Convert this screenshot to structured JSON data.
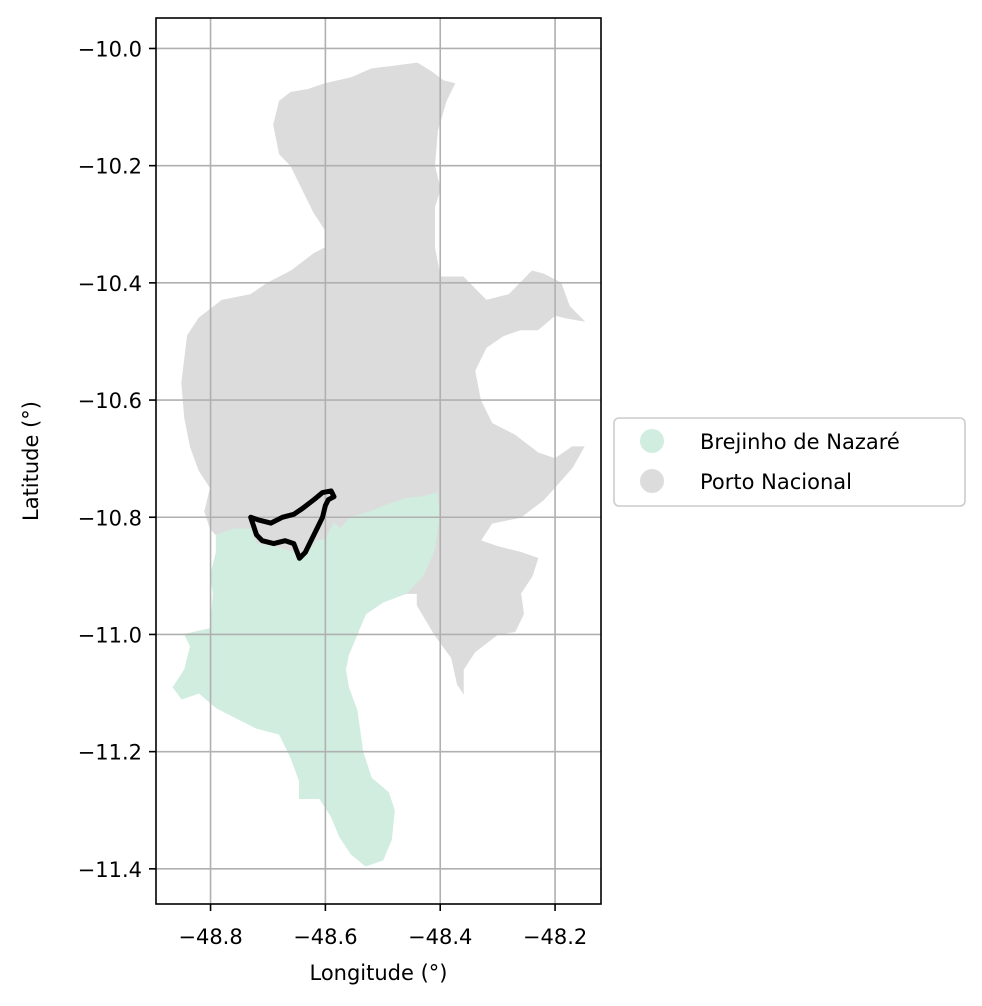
{
  "chart_data": {
    "type": "map",
    "xlabel": "Longitude (°)",
    "ylabel": "Latitude (°)",
    "xlim": [
      -48.895,
      -48.12
    ],
    "ylim": [
      -11.46,
      -9.948
    ],
    "xticks": [
      -48.8,
      -48.6,
      -48.4,
      -48.2
    ],
    "yticks": [
      -10.0,
      -10.2,
      -10.4,
      -10.6,
      -10.8,
      -11.0,
      -11.2,
      -11.4
    ],
    "xtick_labels": [
      "−48.8",
      "−48.6",
      "−48.4",
      "−48.2"
    ],
    "ytick_labels": [
      "−10.0",
      "−10.2",
      "−10.4",
      "−10.6",
      "−10.8",
      "−11.0",
      "−11.2",
      "−11.4"
    ],
    "grid": true,
    "legend_position": "right",
    "series": [
      {
        "name": "Brejinho de Nazaré",
        "color": "#d0ede0",
        "polygon": [
          [
            -48.73,
            -10.82
          ],
          [
            -48.72,
            -10.845
          ],
          [
            -48.69,
            -10.85
          ],
          [
            -48.655,
            -10.86
          ],
          [
            -48.645,
            -10.875
          ],
          [
            -48.63,
            -10.86
          ],
          [
            -48.615,
            -10.84
          ],
          [
            -48.6,
            -10.838
          ],
          [
            -48.585,
            -10.81
          ],
          [
            -48.575,
            -10.82
          ],
          [
            -48.555,
            -10.8
          ],
          [
            -48.52,
            -10.79
          ],
          [
            -48.49,
            -10.778
          ],
          [
            -48.46,
            -10.768
          ],
          [
            -48.43,
            -10.765
          ],
          [
            -48.405,
            -10.758
          ],
          [
            -48.402,
            -10.8
          ],
          [
            -48.41,
            -10.855
          ],
          [
            -48.43,
            -10.9
          ],
          [
            -48.46,
            -10.93
          ],
          [
            -48.5,
            -10.945
          ],
          [
            -48.53,
            -10.965
          ],
          [
            -48.545,
            -11.0
          ],
          [
            -48.56,
            -11.035
          ],
          [
            -48.565,
            -11.06
          ],
          [
            -48.56,
            -11.09
          ],
          [
            -48.545,
            -11.13
          ],
          [
            -48.535,
            -11.2
          ],
          [
            -48.52,
            -11.245
          ],
          [
            -48.49,
            -11.27
          ],
          [
            -48.48,
            -11.3
          ],
          [
            -48.485,
            -11.35
          ],
          [
            -48.5,
            -11.385
          ],
          [
            -48.53,
            -11.395
          ],
          [
            -48.555,
            -11.375
          ],
          [
            -48.575,
            -11.345
          ],
          [
            -48.59,
            -11.31
          ],
          [
            -48.61,
            -11.28
          ],
          [
            -48.645,
            -11.28
          ],
          [
            -48.645,
            -11.25
          ],
          [
            -48.66,
            -11.21
          ],
          [
            -48.68,
            -11.17
          ],
          [
            -48.72,
            -11.16
          ],
          [
            -48.76,
            -11.14
          ],
          [
            -48.79,
            -11.125
          ],
          [
            -48.82,
            -11.1
          ],
          [
            -48.85,
            -11.11
          ],
          [
            -48.865,
            -11.09
          ],
          [
            -48.845,
            -11.06
          ],
          [
            -48.835,
            -11.02
          ],
          [
            -48.845,
            -11.0
          ],
          [
            -48.8,
            -10.99
          ],
          [
            -48.795,
            -10.93
          ],
          [
            -48.8,
            -10.9
          ],
          [
            -48.79,
            -10.86
          ],
          [
            -48.79,
            -10.83
          ],
          [
            -48.76,
            -10.82
          ]
        ]
      },
      {
        "name": "Porto Nacional",
        "color": "#dcdcdc",
        "polygon": [
          [
            -48.555,
            -10.05
          ],
          [
            -48.52,
            -10.035
          ],
          [
            -48.48,
            -10.03
          ],
          [
            -48.44,
            -10.025
          ],
          [
            -48.415,
            -10.04
          ],
          [
            -48.395,
            -10.055
          ],
          [
            -48.375,
            -10.06
          ],
          [
            -48.39,
            -10.09
          ],
          [
            -48.405,
            -10.14
          ],
          [
            -48.41,
            -10.2
          ],
          [
            -48.4,
            -10.24
          ],
          [
            -48.41,
            -10.27
          ],
          [
            -48.41,
            -10.34
          ],
          [
            -48.4,
            -10.39
          ],
          [
            -48.36,
            -10.39
          ],
          [
            -48.32,
            -10.43
          ],
          [
            -48.28,
            -10.42
          ],
          [
            -48.24,
            -10.38
          ],
          [
            -48.22,
            -10.385
          ],
          [
            -48.19,
            -10.4
          ],
          [
            -48.175,
            -10.44
          ],
          [
            -48.15,
            -10.465
          ],
          [
            -48.18,
            -10.46
          ],
          [
            -48.2,
            -10.455
          ],
          [
            -48.23,
            -10.48
          ],
          [
            -48.26,
            -10.48
          ],
          [
            -48.29,
            -10.49
          ],
          [
            -48.32,
            -10.51
          ],
          [
            -48.34,
            -10.55
          ],
          [
            -48.33,
            -10.6
          ],
          [
            -48.31,
            -10.64
          ],
          [
            -48.27,
            -10.66
          ],
          [
            -48.23,
            -10.69
          ],
          [
            -48.2,
            -10.7
          ],
          [
            -48.17,
            -10.68
          ],
          [
            -48.15,
            -10.68
          ],
          [
            -48.17,
            -10.715
          ],
          [
            -48.22,
            -10.77
          ],
          [
            -48.26,
            -10.8
          ],
          [
            -48.31,
            -10.81
          ],
          [
            -48.33,
            -10.84
          ],
          [
            -48.3,
            -10.85
          ],
          [
            -48.26,
            -10.86
          ],
          [
            -48.23,
            -10.87
          ],
          [
            -48.24,
            -10.9
          ],
          [
            -48.26,
            -10.93
          ],
          [
            -48.255,
            -10.965
          ],
          [
            -48.27,
            -10.995
          ],
          [
            -48.3,
            -11.0
          ],
          [
            -48.34,
            -11.03
          ],
          [
            -48.36,
            -11.06
          ],
          [
            -48.36,
            -11.1
          ],
          [
            -48.37,
            -11.085
          ],
          [
            -48.38,
            -11.04
          ],
          [
            -48.41,
            -11.0
          ],
          [
            -48.44,
            -10.95
          ],
          [
            -48.44,
            -10.93
          ],
          [
            -48.46,
            -10.93
          ],
          [
            -48.43,
            -10.9
          ],
          [
            -48.41,
            -10.855
          ],
          [
            -48.402,
            -10.8
          ],
          [
            -48.405,
            -10.758
          ],
          [
            -48.43,
            -10.765
          ],
          [
            -48.46,
            -10.768
          ],
          [
            -48.49,
            -10.778
          ],
          [
            -48.52,
            -10.79
          ],
          [
            -48.555,
            -10.8
          ],
          [
            -48.575,
            -10.82
          ],
          [
            -48.585,
            -10.81
          ],
          [
            -48.6,
            -10.838
          ],
          [
            -48.615,
            -10.84
          ],
          [
            -48.63,
            -10.86
          ],
          [
            -48.645,
            -10.875
          ],
          [
            -48.655,
            -10.86
          ],
          [
            -48.69,
            -10.85
          ],
          [
            -48.72,
            -10.845
          ],
          [
            -48.73,
            -10.82
          ],
          [
            -48.76,
            -10.82
          ],
          [
            -48.79,
            -10.83
          ],
          [
            -48.8,
            -10.82
          ],
          [
            -48.81,
            -10.79
          ],
          [
            -48.8,
            -10.75
          ],
          [
            -48.82,
            -10.72
          ],
          [
            -48.835,
            -10.68
          ],
          [
            -48.845,
            -10.63
          ],
          [
            -48.85,
            -10.57
          ],
          [
            -48.845,
            -10.53
          ],
          [
            -48.84,
            -10.49
          ],
          [
            -48.82,
            -10.46
          ],
          [
            -48.78,
            -10.43
          ],
          [
            -48.73,
            -10.42
          ],
          [
            -48.7,
            -10.4
          ],
          [
            -48.66,
            -10.38
          ],
          [
            -48.62,
            -10.35
          ],
          [
            -48.6,
            -10.34
          ],
          [
            -48.6,
            -10.31
          ],
          [
            -48.62,
            -10.28
          ],
          [
            -48.64,
            -10.24
          ],
          [
            -48.66,
            -10.2
          ],
          [
            -48.68,
            -10.18
          ],
          [
            -48.69,
            -10.13
          ],
          [
            -48.68,
            -10.09
          ],
          [
            -48.66,
            -10.075
          ],
          [
            -48.63,
            -10.07
          ],
          [
            -48.6,
            -10.06
          ]
        ]
      }
    ],
    "overlay": {
      "color": "#000000",
      "path": [
        [
          -48.73,
          -10.8
        ],
        [
          -48.72,
          -10.83
        ],
        [
          -48.71,
          -10.84
        ],
        [
          -48.69,
          -10.845
        ],
        [
          -48.67,
          -10.84
        ],
        [
          -48.655,
          -10.845
        ],
        [
          -48.645,
          -10.87
        ],
        [
          -48.635,
          -10.86
        ],
        [
          -48.625,
          -10.84
        ],
        [
          -48.615,
          -10.82
        ],
        [
          -48.605,
          -10.8
        ],
        [
          -48.6,
          -10.78
        ],
        [
          -48.595,
          -10.77
        ],
        [
          -48.585,
          -10.765
        ],
        [
          -48.59,
          -10.755
        ],
        [
          -48.605,
          -10.758
        ],
        [
          -48.62,
          -10.77
        ],
        [
          -48.64,
          -10.785
        ],
        [
          -48.655,
          -10.795
        ],
        [
          -48.675,
          -10.8
        ],
        [
          -48.695,
          -10.81
        ],
        [
          -48.715,
          -10.805
        ],
        [
          -48.73,
          -10.8
        ]
      ]
    }
  }
}
